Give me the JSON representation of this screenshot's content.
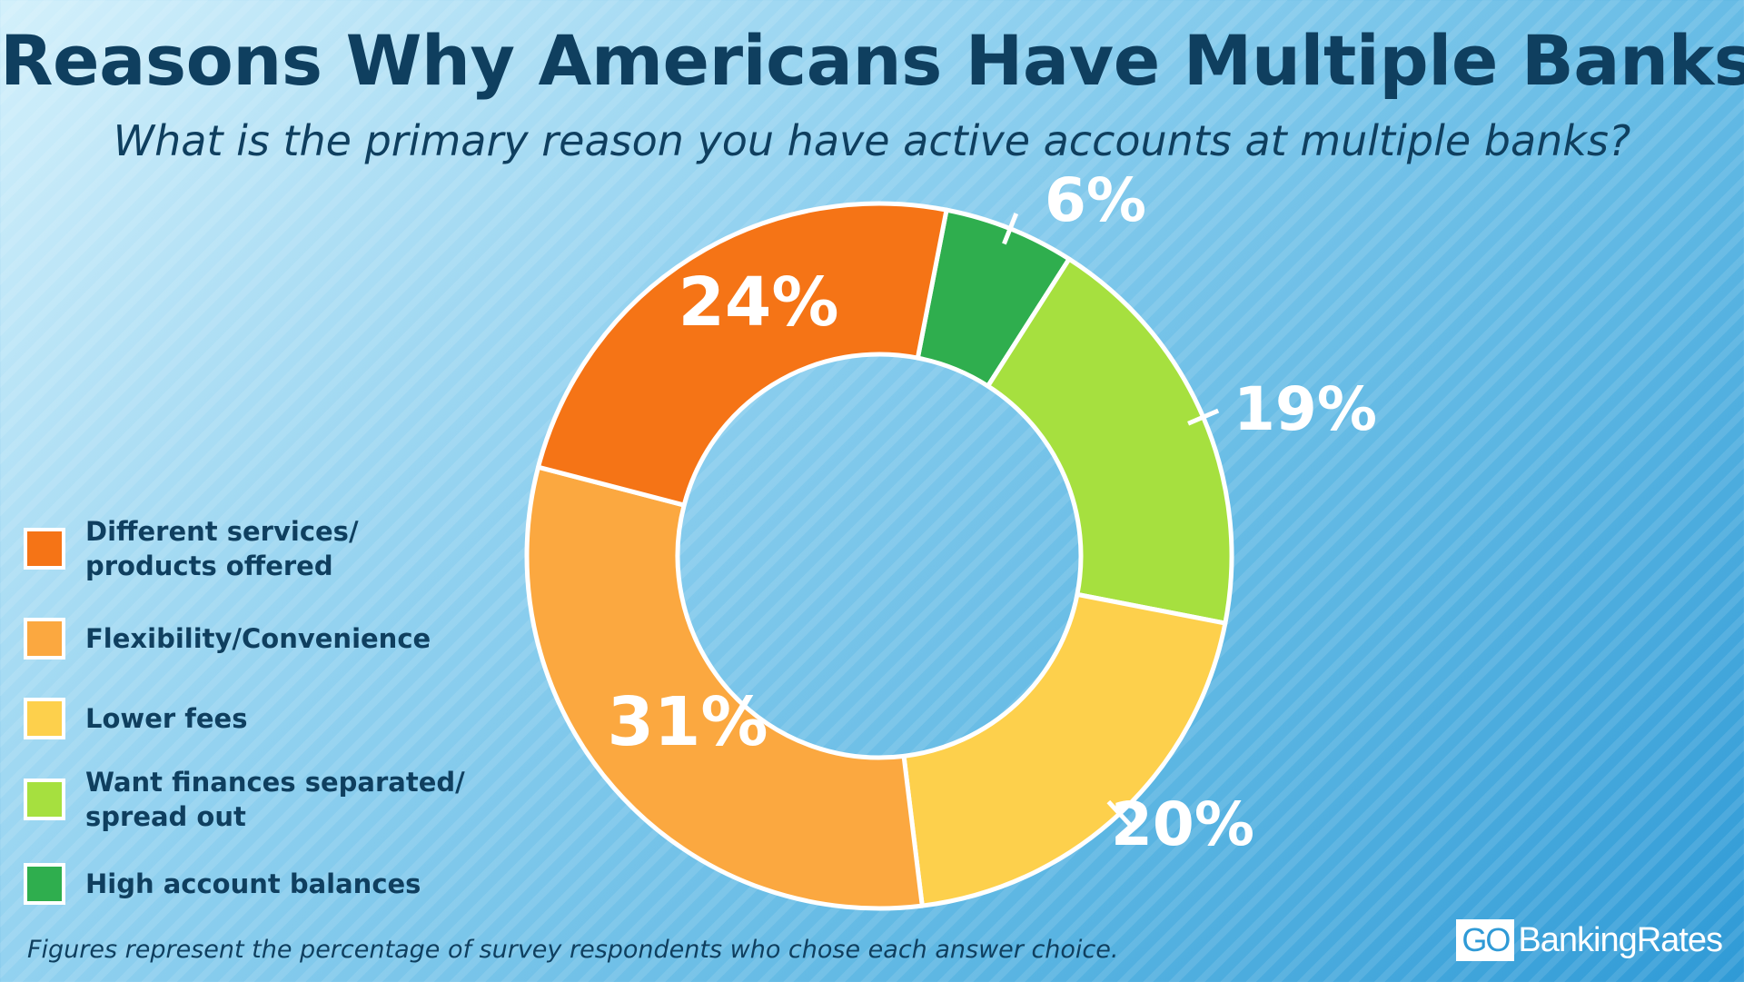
{
  "title": "Reasons Why Americans Have Multiple Banks",
  "subtitle": "What is the primary reason you have active accounts at multiple banks?",
  "footnote": "Figures represent the percentage of survey respondents who chose each answer choice.",
  "logo": {
    "go": "GO",
    "text": "BankingRates"
  },
  "colors": {
    "different_services": "#f57416",
    "flexibility": "#fba840",
    "lower_fees": "#fdd04c",
    "want_separated": "#a6e03f",
    "high_balances": "#2fae4e"
  },
  "chart_data": {
    "type": "pie",
    "variant": "donut",
    "title": "Reasons Why Americans Have Multiple Banks",
    "subtitle": "What is the primary reason you have active accounts at multiple banks?",
    "legend_position": "left",
    "slices": [
      {
        "label": "High account balances",
        "value": 6,
        "value_label": "6%",
        "color": "#2fae4e"
      },
      {
        "label": "Want finances separated/ spread out",
        "value": 19,
        "value_label": "19%",
        "color": "#a6e03f"
      },
      {
        "label": "Lower fees",
        "value": 20,
        "value_label": "20%",
        "color": "#fdd04c"
      },
      {
        "label": "Flexibility/Convenience",
        "value": 31,
        "value_label": "31%",
        "color": "#fba840"
      },
      {
        "label": "Different services/ products offered",
        "value": 24,
        "value_label": "24%",
        "color": "#f57416"
      }
    ]
  },
  "legend": [
    {
      "line1": "Different services/",
      "line2": "products offered",
      "color": "#f57416"
    },
    {
      "line1": "Flexibility/Convenience",
      "line2": "",
      "color": "#fba840"
    },
    {
      "line1": "Lower fees",
      "line2": "",
      "color": "#fdd04c"
    },
    {
      "line1": "Want finances separated/",
      "line2": "spread out",
      "color": "#a6e03f"
    },
    {
      "line1": "High account balances",
      "line2": "",
      "color": "#2fae4e"
    }
  ]
}
